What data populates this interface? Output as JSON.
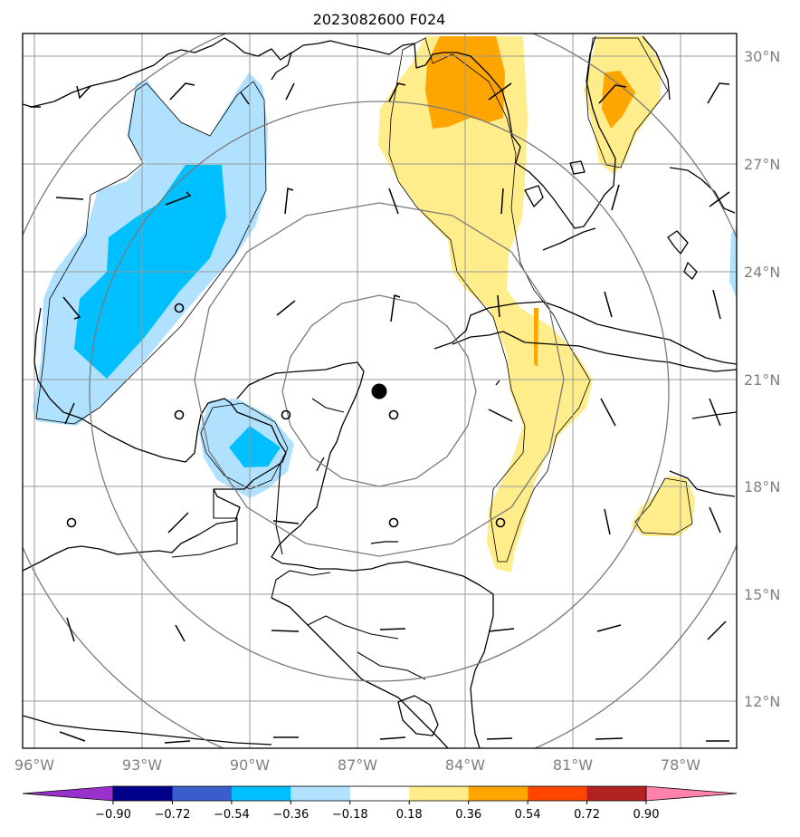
{
  "title": "2023082600 F024",
  "map": {
    "lon_ticks": [
      "96°W",
      "93°W",
      "90°W",
      "87°W",
      "84°W",
      "81°W",
      "78°W"
    ],
    "lat_ticks": [
      "30°N",
      "27°N",
      "24°N",
      "21°N",
      "18°N",
      "15°N",
      "12°N"
    ],
    "center_marker": "filled-dot",
    "range_rings": 4,
    "colorbar": {
      "tick_labels": [
        "−0.90",
        "−0.72",
        "−0.54",
        "−0.36",
        "−0.18",
        "0.18",
        "0.36",
        "0.54",
        "0.72",
        "0.90"
      ],
      "colors": [
        "#9932cc",
        "#00008b",
        "#3a5fcd",
        "#00bfff",
        "#b0e2ff",
        "#ffffff",
        "#ffec8b",
        "#ffa500",
        "#ff4500",
        "#b22222",
        "#ff82ab"
      ]
    }
  }
}
